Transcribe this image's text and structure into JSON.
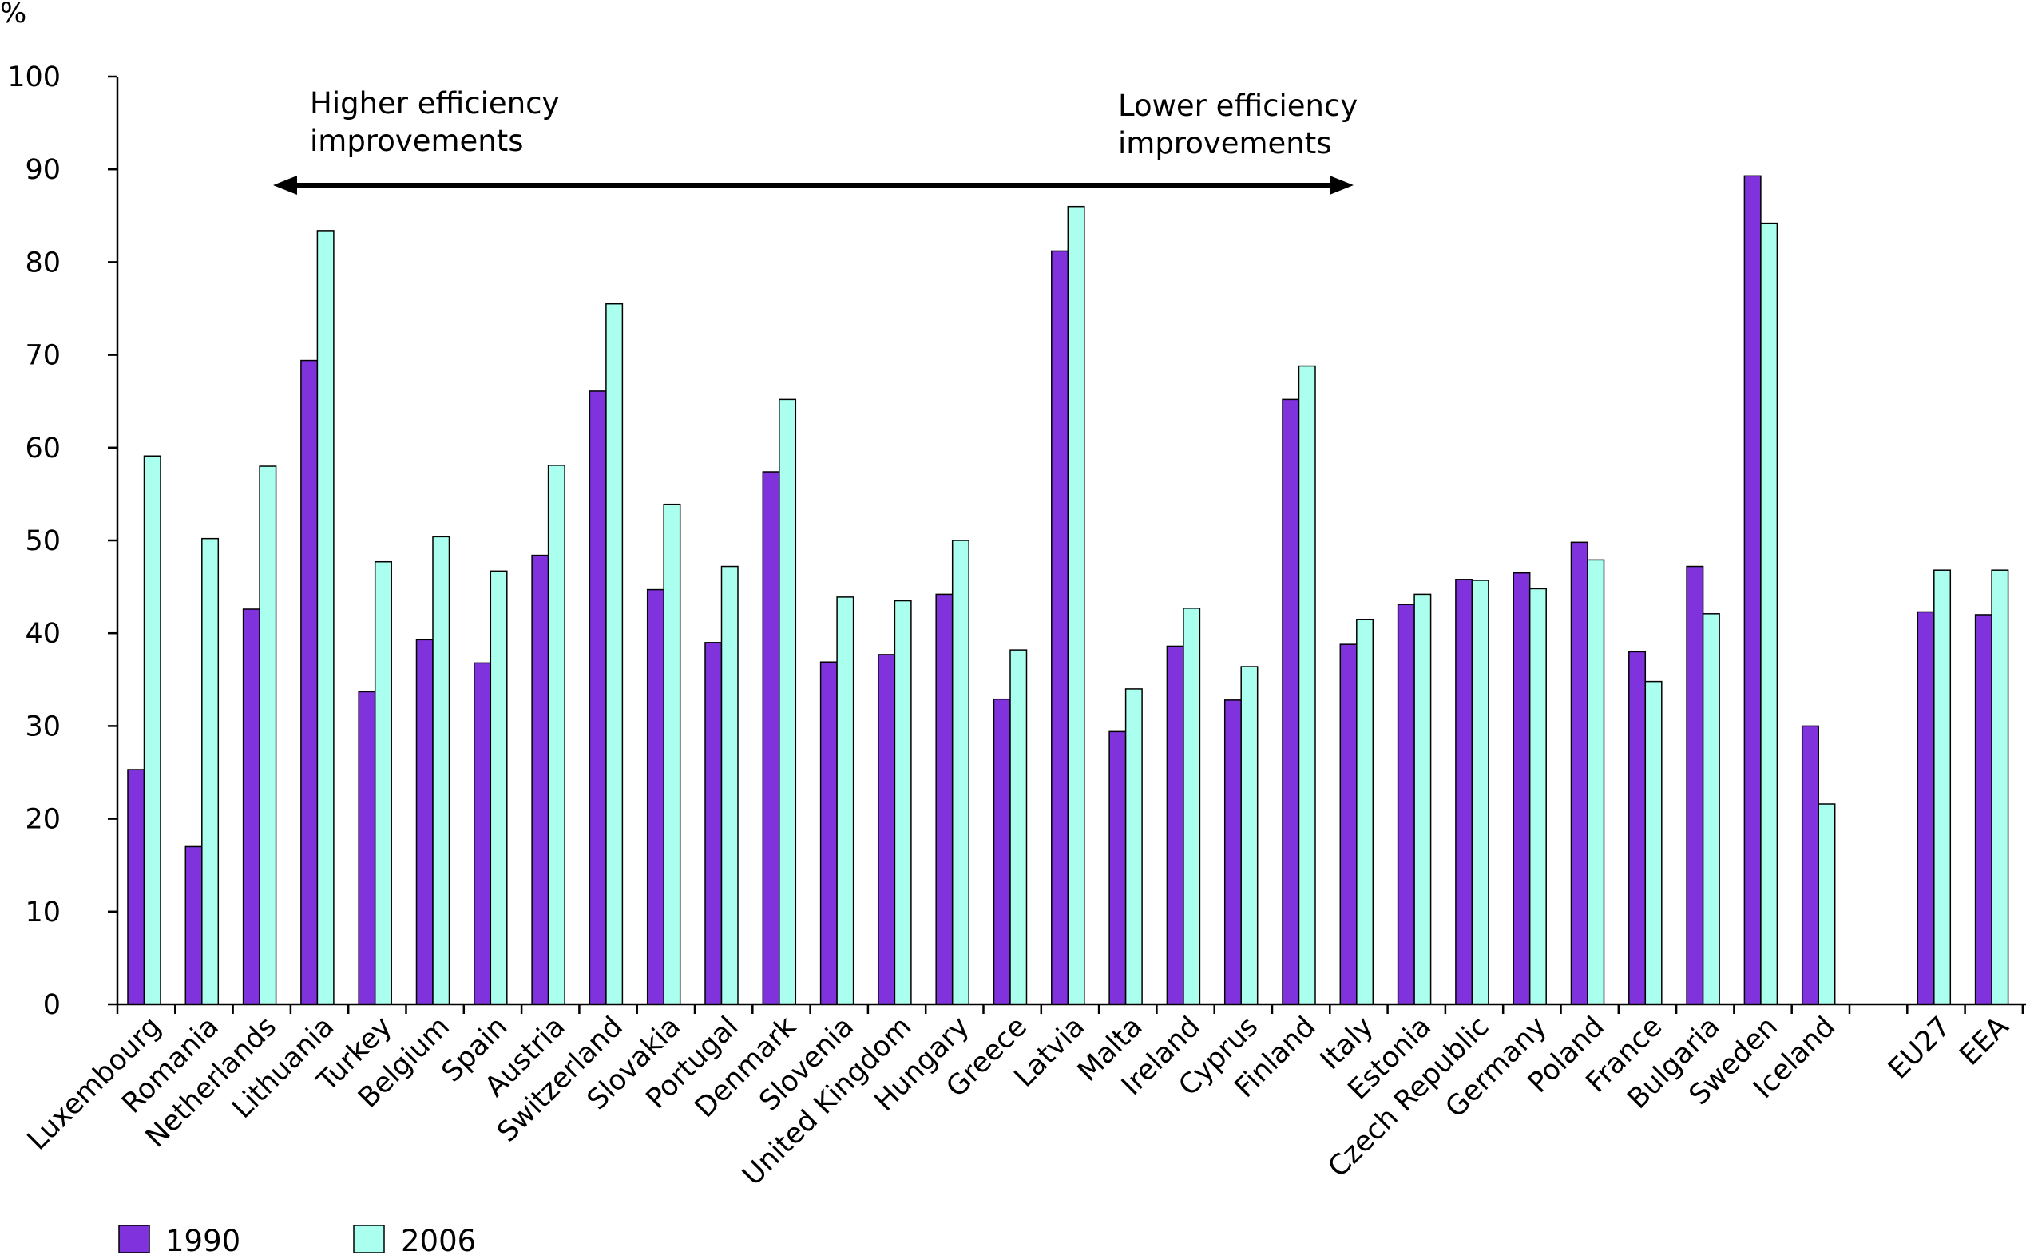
{
  "chart_data": {
    "type": "bar",
    "ylabel": "%",
    "ylim": [
      0,
      100
    ],
    "yticks": [
      0,
      10,
      20,
      30,
      40,
      50,
      60,
      70,
      80,
      90,
      100
    ],
    "grid": false,
    "legend_position": "bottom-left",
    "categories": [
      "Luxembourg",
      "Romania",
      "Netherlands",
      "Lithuania",
      "Turkey",
      "Belgium",
      "Spain",
      "Austria",
      "Switzerland",
      "Slovakia",
      "Portugal",
      "Denmark",
      "Slovenia",
      "United Kingdom",
      "Hungary",
      "Greece",
      "Latvia",
      "Malta",
      "Ireland",
      "Cyprus",
      "Finland",
      "Italy",
      "Estonia",
      "Czech Republic",
      "Germany",
      "Poland",
      "France",
      "Bulgaria",
      "Sweden",
      "Iceland",
      "",
      "EU27",
      "EEA"
    ],
    "series": [
      {
        "name": "1990",
        "color": "#8033dd",
        "values": [
          25.3,
          17.0,
          42.6,
          69.4,
          33.7,
          39.3,
          36.8,
          48.4,
          66.1,
          44.7,
          39.0,
          57.4,
          36.9,
          37.7,
          44.2,
          32.9,
          81.2,
          29.4,
          38.6,
          32.8,
          65.2,
          38.8,
          43.1,
          45.8,
          46.5,
          49.8,
          38.0,
          47.2,
          89.3,
          30.0,
          null,
          42.3,
          42.0
        ]
      },
      {
        "name": "2006",
        "color": "#aaffee",
        "values": [
          59.1,
          50.2,
          58.0,
          83.4,
          47.7,
          50.4,
          46.7,
          58.1,
          75.5,
          53.9,
          47.2,
          65.2,
          43.9,
          43.5,
          50.0,
          38.2,
          86.0,
          34.0,
          42.7,
          36.4,
          68.8,
          41.5,
          44.2,
          45.7,
          44.8,
          47.9,
          34.8,
          42.1,
          84.2,
          21.6,
          null,
          46.8,
          46.8
        ]
      }
    ],
    "annotations": {
      "left": [
        "Higher efficiency",
        "improvements"
      ],
      "right": [
        "Lower efficiency",
        "improvements"
      ]
    }
  }
}
